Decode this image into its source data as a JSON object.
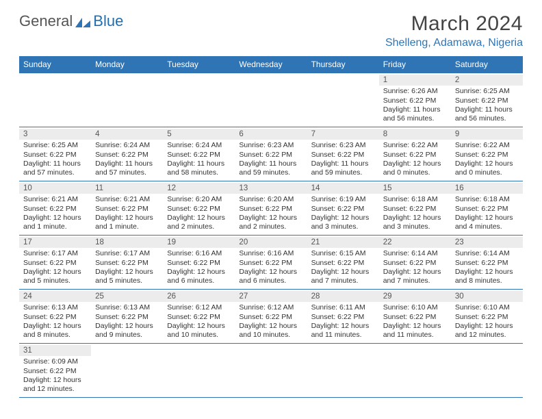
{
  "logo": {
    "general": "General",
    "blue": "Blue"
  },
  "title": "March 2024",
  "location": "Shelleng, Adamawa, Nigeria",
  "colors": {
    "header_bg": "#2f75b5",
    "header_text": "#ffffff",
    "location_text": "#2f75b5",
    "daynum_bg": "#ececec",
    "border": "#2f75b5"
  },
  "daysOfWeek": [
    "Sunday",
    "Monday",
    "Tuesday",
    "Wednesday",
    "Thursday",
    "Friday",
    "Saturday"
  ],
  "weeks": [
    [
      {
        "n": "",
        "empty": true
      },
      {
        "n": "",
        "empty": true
      },
      {
        "n": "",
        "empty": true
      },
      {
        "n": "",
        "empty": true
      },
      {
        "n": "",
        "empty": true
      },
      {
        "n": "1",
        "sr": "Sunrise: 6:26 AM",
        "ss": "Sunset: 6:22 PM",
        "dl1": "Daylight: 11 hours",
        "dl2": "and 56 minutes."
      },
      {
        "n": "2",
        "sr": "Sunrise: 6:25 AM",
        "ss": "Sunset: 6:22 PM",
        "dl1": "Daylight: 11 hours",
        "dl2": "and 56 minutes."
      }
    ],
    [
      {
        "n": "3",
        "sr": "Sunrise: 6:25 AM",
        "ss": "Sunset: 6:22 PM",
        "dl1": "Daylight: 11 hours",
        "dl2": "and 57 minutes."
      },
      {
        "n": "4",
        "sr": "Sunrise: 6:24 AM",
        "ss": "Sunset: 6:22 PM",
        "dl1": "Daylight: 11 hours",
        "dl2": "and 57 minutes."
      },
      {
        "n": "5",
        "sr": "Sunrise: 6:24 AM",
        "ss": "Sunset: 6:22 PM",
        "dl1": "Daylight: 11 hours",
        "dl2": "and 58 minutes."
      },
      {
        "n": "6",
        "sr": "Sunrise: 6:23 AM",
        "ss": "Sunset: 6:22 PM",
        "dl1": "Daylight: 11 hours",
        "dl2": "and 59 minutes."
      },
      {
        "n": "7",
        "sr": "Sunrise: 6:23 AM",
        "ss": "Sunset: 6:22 PM",
        "dl1": "Daylight: 11 hours",
        "dl2": "and 59 minutes."
      },
      {
        "n": "8",
        "sr": "Sunrise: 6:22 AM",
        "ss": "Sunset: 6:22 PM",
        "dl1": "Daylight: 12 hours",
        "dl2": "and 0 minutes."
      },
      {
        "n": "9",
        "sr": "Sunrise: 6:22 AM",
        "ss": "Sunset: 6:22 PM",
        "dl1": "Daylight: 12 hours",
        "dl2": "and 0 minutes."
      }
    ],
    [
      {
        "n": "10",
        "sr": "Sunrise: 6:21 AM",
        "ss": "Sunset: 6:22 PM",
        "dl1": "Daylight: 12 hours",
        "dl2": "and 1 minute."
      },
      {
        "n": "11",
        "sr": "Sunrise: 6:21 AM",
        "ss": "Sunset: 6:22 PM",
        "dl1": "Daylight: 12 hours",
        "dl2": "and 1 minute."
      },
      {
        "n": "12",
        "sr": "Sunrise: 6:20 AM",
        "ss": "Sunset: 6:22 PM",
        "dl1": "Daylight: 12 hours",
        "dl2": "and 2 minutes."
      },
      {
        "n": "13",
        "sr": "Sunrise: 6:20 AM",
        "ss": "Sunset: 6:22 PM",
        "dl1": "Daylight: 12 hours",
        "dl2": "and 2 minutes."
      },
      {
        "n": "14",
        "sr": "Sunrise: 6:19 AM",
        "ss": "Sunset: 6:22 PM",
        "dl1": "Daylight: 12 hours",
        "dl2": "and 3 minutes."
      },
      {
        "n": "15",
        "sr": "Sunrise: 6:18 AM",
        "ss": "Sunset: 6:22 PM",
        "dl1": "Daylight: 12 hours",
        "dl2": "and 3 minutes."
      },
      {
        "n": "16",
        "sr": "Sunrise: 6:18 AM",
        "ss": "Sunset: 6:22 PM",
        "dl1": "Daylight: 12 hours",
        "dl2": "and 4 minutes."
      }
    ],
    [
      {
        "n": "17",
        "sr": "Sunrise: 6:17 AM",
        "ss": "Sunset: 6:22 PM",
        "dl1": "Daylight: 12 hours",
        "dl2": "and 5 minutes."
      },
      {
        "n": "18",
        "sr": "Sunrise: 6:17 AM",
        "ss": "Sunset: 6:22 PM",
        "dl1": "Daylight: 12 hours",
        "dl2": "and 5 minutes."
      },
      {
        "n": "19",
        "sr": "Sunrise: 6:16 AM",
        "ss": "Sunset: 6:22 PM",
        "dl1": "Daylight: 12 hours",
        "dl2": "and 6 minutes."
      },
      {
        "n": "20",
        "sr": "Sunrise: 6:16 AM",
        "ss": "Sunset: 6:22 PM",
        "dl1": "Daylight: 12 hours",
        "dl2": "and 6 minutes."
      },
      {
        "n": "21",
        "sr": "Sunrise: 6:15 AM",
        "ss": "Sunset: 6:22 PM",
        "dl1": "Daylight: 12 hours",
        "dl2": "and 7 minutes."
      },
      {
        "n": "22",
        "sr": "Sunrise: 6:14 AM",
        "ss": "Sunset: 6:22 PM",
        "dl1": "Daylight: 12 hours",
        "dl2": "and 7 minutes."
      },
      {
        "n": "23",
        "sr": "Sunrise: 6:14 AM",
        "ss": "Sunset: 6:22 PM",
        "dl1": "Daylight: 12 hours",
        "dl2": "and 8 minutes."
      }
    ],
    [
      {
        "n": "24",
        "sr": "Sunrise: 6:13 AM",
        "ss": "Sunset: 6:22 PM",
        "dl1": "Daylight: 12 hours",
        "dl2": "and 8 minutes."
      },
      {
        "n": "25",
        "sr": "Sunrise: 6:13 AM",
        "ss": "Sunset: 6:22 PM",
        "dl1": "Daylight: 12 hours",
        "dl2": "and 9 minutes."
      },
      {
        "n": "26",
        "sr": "Sunrise: 6:12 AM",
        "ss": "Sunset: 6:22 PM",
        "dl1": "Daylight: 12 hours",
        "dl2": "and 10 minutes."
      },
      {
        "n": "27",
        "sr": "Sunrise: 6:12 AM",
        "ss": "Sunset: 6:22 PM",
        "dl1": "Daylight: 12 hours",
        "dl2": "and 10 minutes."
      },
      {
        "n": "28",
        "sr": "Sunrise: 6:11 AM",
        "ss": "Sunset: 6:22 PM",
        "dl1": "Daylight: 12 hours",
        "dl2": "and 11 minutes."
      },
      {
        "n": "29",
        "sr": "Sunrise: 6:10 AM",
        "ss": "Sunset: 6:22 PM",
        "dl1": "Daylight: 12 hours",
        "dl2": "and 11 minutes."
      },
      {
        "n": "30",
        "sr": "Sunrise: 6:10 AM",
        "ss": "Sunset: 6:22 PM",
        "dl1": "Daylight: 12 hours",
        "dl2": "and 12 minutes."
      }
    ],
    [
      {
        "n": "31",
        "sr": "Sunrise: 6:09 AM",
        "ss": "Sunset: 6:22 PM",
        "dl1": "Daylight: 12 hours",
        "dl2": "and 12 minutes."
      },
      {
        "n": "",
        "empty": true
      },
      {
        "n": "",
        "empty": true
      },
      {
        "n": "",
        "empty": true
      },
      {
        "n": "",
        "empty": true
      },
      {
        "n": "",
        "empty": true
      },
      {
        "n": "",
        "empty": true
      }
    ]
  ]
}
